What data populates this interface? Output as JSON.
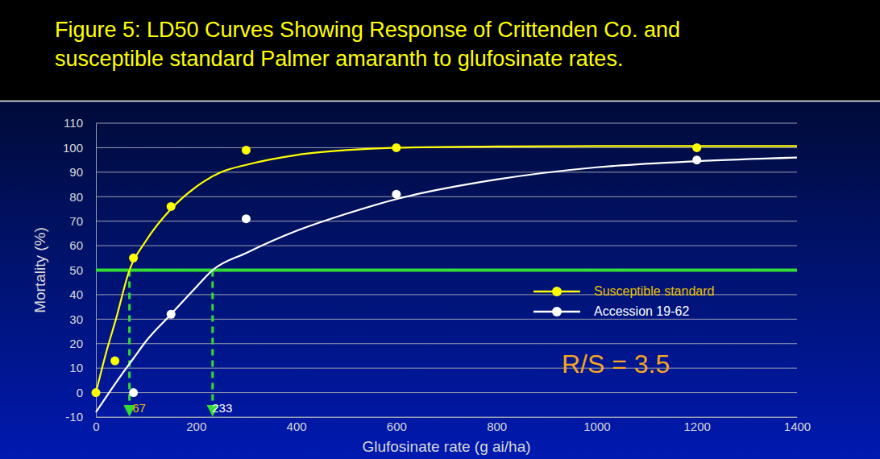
{
  "chart_data": {
    "type": "scatter",
    "title": [
      "Figure 5: LD50 Curves Showing Response of Crittenden Co. and",
      "susceptible standard Palmer amaranth to glufosinate rates."
    ],
    "x_label": "Glufosinate rate (g ai/ha)",
    "y_label": "Mortality (%)",
    "xlim": [
      0,
      1400
    ],
    "xticks": [
      0,
      200,
      400,
      600,
      800,
      1000,
      1200,
      1400
    ],
    "ylim": [
      -10,
      110
    ],
    "yticks": [
      -10,
      0,
      10,
      20,
      30,
      40,
      50,
      60,
      70,
      80,
      90,
      100,
      110
    ],
    "grid": true,
    "legend": "right",
    "series": [
      {
        "name": "Susceptible standard",
        "color": "#ffff00",
        "marker": "circle",
        "line_style": "solid",
        "x": [
          0,
          38,
          75,
          150,
          300,
          600,
          1200
        ],
        "values": [
          0,
          13,
          55,
          76,
          99,
          100,
          100
        ],
        "curve_x": [
          0,
          20,
          40,
          67,
          100,
          150,
          200,
          250,
          300,
          400,
          500,
          600,
          800,
          1000,
          1200,
          1400
        ],
        "curve_values": [
          0,
          16,
          30,
          50,
          62,
          75,
          84,
          90,
          93,
          97,
          99,
          100,
          100.5,
          100.7,
          100.7,
          100.7
        ]
      },
      {
        "name": "Accession 19-62",
        "color": "#ffffff",
        "marker": "circle",
        "line_style": "solid",
        "x": [
          75,
          150,
          300,
          600,
          1200
        ],
        "values": [
          0,
          32,
          71,
          81,
          95
        ],
        "curve_x": [
          0,
          50,
          75,
          100,
          150,
          200,
          233,
          300,
          400,
          500,
          600,
          800,
          1000,
          1200,
          1400
        ],
        "curve_values": [
          -8,
          7,
          14,
          21,
          32,
          43,
          50,
          57,
          66,
          73,
          79,
          87,
          92,
          94.5,
          96
        ]
      }
    ],
    "threshold": 50,
    "ld50": [
      67,
      233
    ],
    "annotation": "R/S = 3.5"
  }
}
